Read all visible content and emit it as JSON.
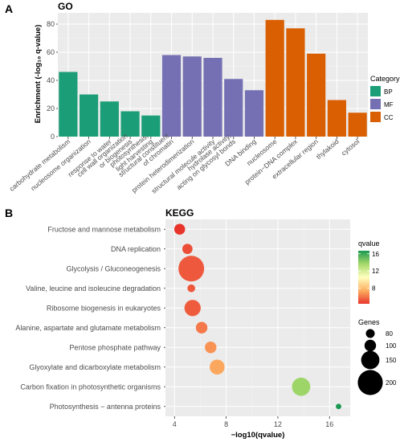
{
  "panels": {
    "a_label": "A",
    "b_label": "B"
  },
  "chart_data": [
    {
      "type": "bar",
      "title": "GO",
      "ylabel": "Enrichment (-log₁₀ q-value)",
      "ylim": [
        0,
        88
      ],
      "yticks": [
        0,
        20,
        40,
        60,
        80
      ],
      "grid": true,
      "legend": {
        "title": "Category",
        "position": "right"
      },
      "category_colors": {
        "BP": "#1b9e77",
        "MF": "#7570b3",
        "CC": "#d95f02"
      },
      "categories": [
        "carbohydrate metabolism",
        "nucleosome organization",
        "response to water",
        "cell wall organization or biogenesis",
        "photosynthesis, light harvesting",
        "structural constituent of chromatin",
        "protein heterodimerization",
        "structural molecule activity",
        "hydrolase activity, acting on glycosyl bonds",
        "DNA binding",
        "nucleosome",
        "protein−DNA complex",
        "extracellular region",
        "thylakoid",
        "cytosol"
      ],
      "tick_lines": [
        [
          "carbohydrate metabolism"
        ],
        [
          "nucleosome organization"
        ],
        [
          "response to water"
        ],
        [
          "cell wall organization",
          "or biogenesis"
        ],
        [
          "photosynthesis,",
          "light harvesting"
        ],
        [
          "structural constituent",
          "of chromatin"
        ],
        [
          "protein heterodimerization"
        ],
        [
          "structural molecule activity"
        ],
        [
          "hydrolase activity,",
          "acting on glycosyl bonds"
        ],
        [
          "DNA binding"
        ],
        [
          "nucleosome"
        ],
        [
          "protein−DNA complex"
        ],
        [
          "extracellular region"
        ],
        [
          "thylakoid"
        ],
        [
          "cytosol"
        ]
      ],
      "groups": [
        "BP",
        "BP",
        "BP",
        "BP",
        "BP",
        "MF",
        "MF",
        "MF",
        "MF",
        "MF",
        "CC",
        "CC",
        "CC",
        "CC",
        "CC"
      ],
      "values": [
        46,
        30,
        25,
        18,
        15,
        58,
        57,
        56,
        41,
        33,
        83,
        77,
        59,
        26,
        17
      ]
    },
    {
      "type": "scatter",
      "title": "KEGG",
      "xlabel": "−log10(qvalue)",
      "xlim": [
        3.3,
        17.6
      ],
      "xticks": [
        4,
        8,
        12,
        16
      ],
      "grid": true,
      "categories": [
        "Fructose and mannose metabolism",
        "DNA replication",
        "Glycolysis / Gluconeogenesis",
        "Valine, leucine and isoleucine degradation",
        "Ribosome biogenesis in eukaryotes",
        "Alanine, aspartate and glutamate metabolism",
        "Pentose phosphate pathway",
        "Glyoxylate and dicarboxylate metabolism",
        "Carbon fixation in photosynthetic organisms",
        "Photosynthesis − antenna proteins"
      ],
      "x": [
        4.4,
        5.0,
        5.3,
        5.3,
        5.4,
        6.1,
        6.8,
        7.3,
        13.8,
        16.7
      ],
      "genes": [
        95,
        90,
        205,
        72,
        135,
        100,
        100,
        125,
        150,
        55
      ],
      "qvalue_color": [
        4.4,
        5.0,
        5.3,
        5.3,
        5.4,
        6.1,
        6.8,
        7.3,
        13.8,
        16.7
      ],
      "legend_color": {
        "title": "qvalue",
        "ticks": [
          8,
          12,
          16
        ],
        "range": [
          4.4,
          16.7
        ],
        "colors": [
          "#e8352c",
          "#fdae61",
          "#ffffbf",
          "#a6d96a",
          "#1a9850"
        ]
      },
      "legend_size": {
        "title": "Genes",
        "ticks": [
          80,
          100,
          150,
          200
        ]
      }
    }
  ]
}
